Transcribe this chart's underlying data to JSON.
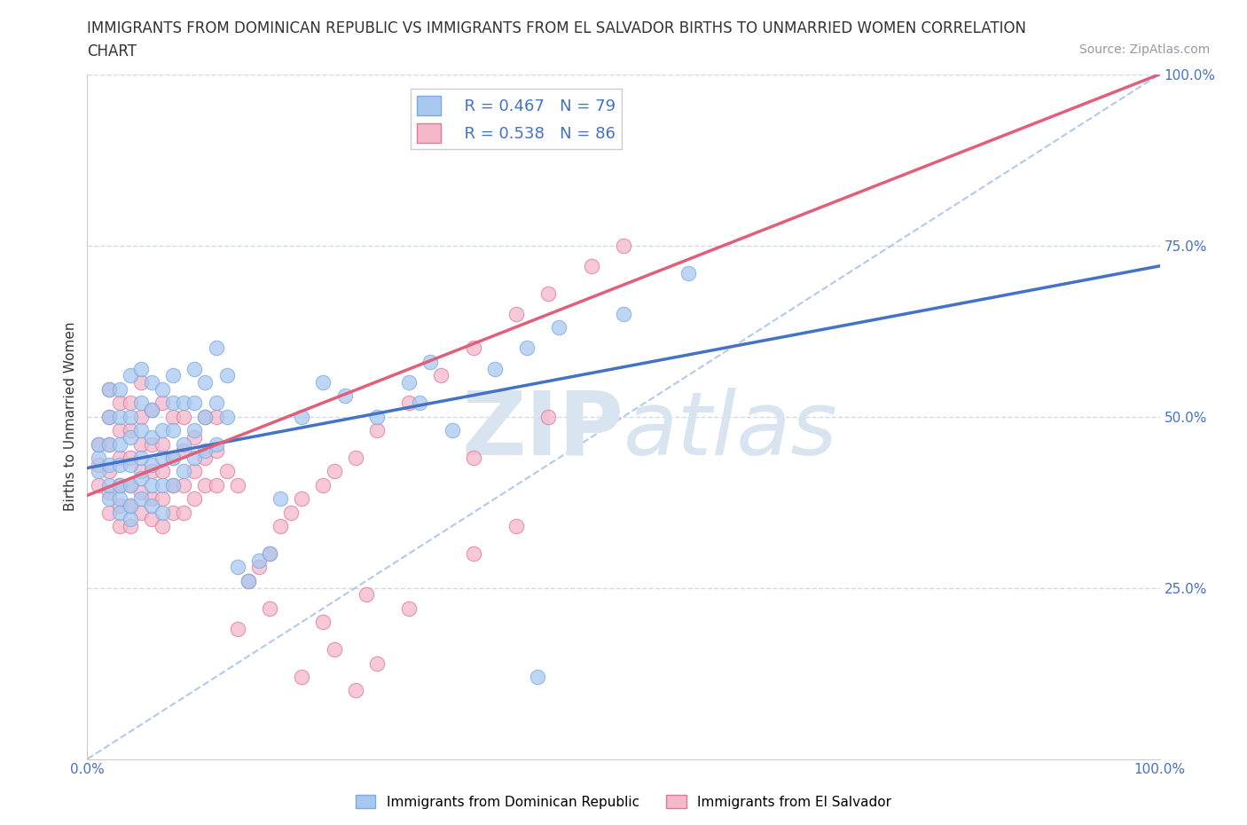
{
  "title_line1": "IMMIGRANTS FROM DOMINICAN REPUBLIC VS IMMIGRANTS FROM EL SALVADOR BIRTHS TO UNMARRIED WOMEN CORRELATION",
  "title_line2": "CHART",
  "source": "Source: ZipAtlas.com",
  "ylabel": "Births to Unmarried Women",
  "xlim": [
    0.0,
    1.0
  ],
  "ylim": [
    0.0,
    1.0
  ],
  "x_tick_positions": [
    0.0,
    1.0
  ],
  "x_tick_labels": [
    "0.0%",
    "100.0%"
  ],
  "y_tick_vals": [
    0.25,
    0.5,
    0.75,
    1.0
  ],
  "y_tick_labels": [
    "25.0%",
    "50.0%",
    "75.0%",
    "100.0%"
  ],
  "blue_color": "#a8c8f0",
  "blue_edge_color": "#7aabe0",
  "pink_color": "#f5b8cb",
  "pink_edge_color": "#e07898",
  "trend_blue_color": "#4472c4",
  "trend_pink_color": "#e0607a",
  "dashed_line_color": "#a0bce8",
  "hline_color": "#c8d8ec",
  "watermark_zip": "ZIP",
  "watermark_atlas": "atlas",
  "watermark_color": "#d8e4f0",
  "R_blue": 0.467,
  "N_blue": 79,
  "R_pink": 0.538,
  "N_pink": 86,
  "blue_trend_y_start": 0.425,
  "blue_trend_y_end": 0.72,
  "pink_trend_y_start": 0.385,
  "pink_trend_y_end": 1.0,
  "title_fontsize": 12,
  "axis_label_fontsize": 11,
  "tick_fontsize": 11,
  "legend_fontsize": 13,
  "source_fontsize": 10,
  "blue_scatter_x": [
    0.01,
    0.01,
    0.01,
    0.02,
    0.02,
    0.02,
    0.02,
    0.02,
    0.02,
    0.03,
    0.03,
    0.03,
    0.03,
    0.03,
    0.03,
    0.03,
    0.04,
    0.04,
    0.04,
    0.04,
    0.04,
    0.04,
    0.04,
    0.05,
    0.05,
    0.05,
    0.05,
    0.05,
    0.05,
    0.06,
    0.06,
    0.06,
    0.06,
    0.06,
    0.06,
    0.07,
    0.07,
    0.07,
    0.07,
    0.07,
    0.08,
    0.08,
    0.08,
    0.08,
    0.08,
    0.09,
    0.09,
    0.09,
    0.1,
    0.1,
    0.1,
    0.1,
    0.11,
    0.11,
    0.11,
    0.12,
    0.12,
    0.12,
    0.13,
    0.13,
    0.14,
    0.15,
    0.16,
    0.17,
    0.18,
    0.2,
    0.22,
    0.24,
    0.27,
    0.3,
    0.31,
    0.32,
    0.34,
    0.38,
    0.41,
    0.44,
    0.5,
    0.56,
    0.42
  ],
  "blue_scatter_y": [
    0.42,
    0.44,
    0.46,
    0.38,
    0.4,
    0.43,
    0.46,
    0.5,
    0.54,
    0.36,
    0.38,
    0.4,
    0.43,
    0.46,
    0.5,
    0.54,
    0.35,
    0.37,
    0.4,
    0.43,
    0.47,
    0.5,
    0.56,
    0.38,
    0.41,
    0.44,
    0.48,
    0.52,
    0.57,
    0.37,
    0.4,
    0.43,
    0.47,
    0.51,
    0.55,
    0.36,
    0.4,
    0.44,
    0.48,
    0.54,
    0.4,
    0.44,
    0.48,
    0.52,
    0.56,
    0.42,
    0.46,
    0.52,
    0.44,
    0.48,
    0.52,
    0.57,
    0.45,
    0.5,
    0.55,
    0.46,
    0.52,
    0.6,
    0.5,
    0.56,
    0.28,
    0.26,
    0.29,
    0.3,
    0.38,
    0.5,
    0.55,
    0.53,
    0.5,
    0.55,
    0.52,
    0.58,
    0.48,
    0.57,
    0.6,
    0.63,
    0.65,
    0.71,
    0.12
  ],
  "pink_scatter_x": [
    0.01,
    0.01,
    0.01,
    0.02,
    0.02,
    0.02,
    0.02,
    0.02,
    0.02,
    0.03,
    0.03,
    0.03,
    0.03,
    0.03,
    0.03,
    0.04,
    0.04,
    0.04,
    0.04,
    0.04,
    0.04,
    0.05,
    0.05,
    0.05,
    0.05,
    0.05,
    0.05,
    0.06,
    0.06,
    0.06,
    0.06,
    0.06,
    0.07,
    0.07,
    0.07,
    0.07,
    0.07,
    0.08,
    0.08,
    0.08,
    0.08,
    0.09,
    0.09,
    0.09,
    0.09,
    0.1,
    0.1,
    0.1,
    0.11,
    0.11,
    0.11,
    0.12,
    0.12,
    0.12,
    0.13,
    0.14,
    0.15,
    0.16,
    0.17,
    0.18,
    0.19,
    0.2,
    0.22,
    0.23,
    0.25,
    0.27,
    0.3,
    0.33,
    0.36,
    0.4,
    0.43,
    0.47,
    0.5,
    0.3,
    0.22,
    0.26,
    0.36,
    0.4,
    0.14,
    0.17,
    0.2,
    0.23,
    0.25,
    0.27,
    0.36,
    0.43
  ],
  "pink_scatter_y": [
    0.4,
    0.43,
    0.46,
    0.36,
    0.39,
    0.42,
    0.46,
    0.5,
    0.54,
    0.34,
    0.37,
    0.4,
    0.44,
    0.48,
    0.52,
    0.34,
    0.37,
    0.4,
    0.44,
    0.48,
    0.52,
    0.36,
    0.39,
    0.42,
    0.46,
    0.5,
    0.55,
    0.35,
    0.38,
    0.42,
    0.46,
    0.51,
    0.34,
    0.38,
    0.42,
    0.46,
    0.52,
    0.36,
    0.4,
    0.44,
    0.5,
    0.36,
    0.4,
    0.45,
    0.5,
    0.38,
    0.42,
    0.47,
    0.4,
    0.44,
    0.5,
    0.4,
    0.45,
    0.5,
    0.42,
    0.4,
    0.26,
    0.28,
    0.3,
    0.34,
    0.36,
    0.38,
    0.4,
    0.42,
    0.44,
    0.48,
    0.52,
    0.56,
    0.6,
    0.65,
    0.68,
    0.72,
    0.75,
    0.22,
    0.2,
    0.24,
    0.3,
    0.34,
    0.19,
    0.22,
    0.12,
    0.16,
    0.1,
    0.14,
    0.44,
    0.5
  ]
}
